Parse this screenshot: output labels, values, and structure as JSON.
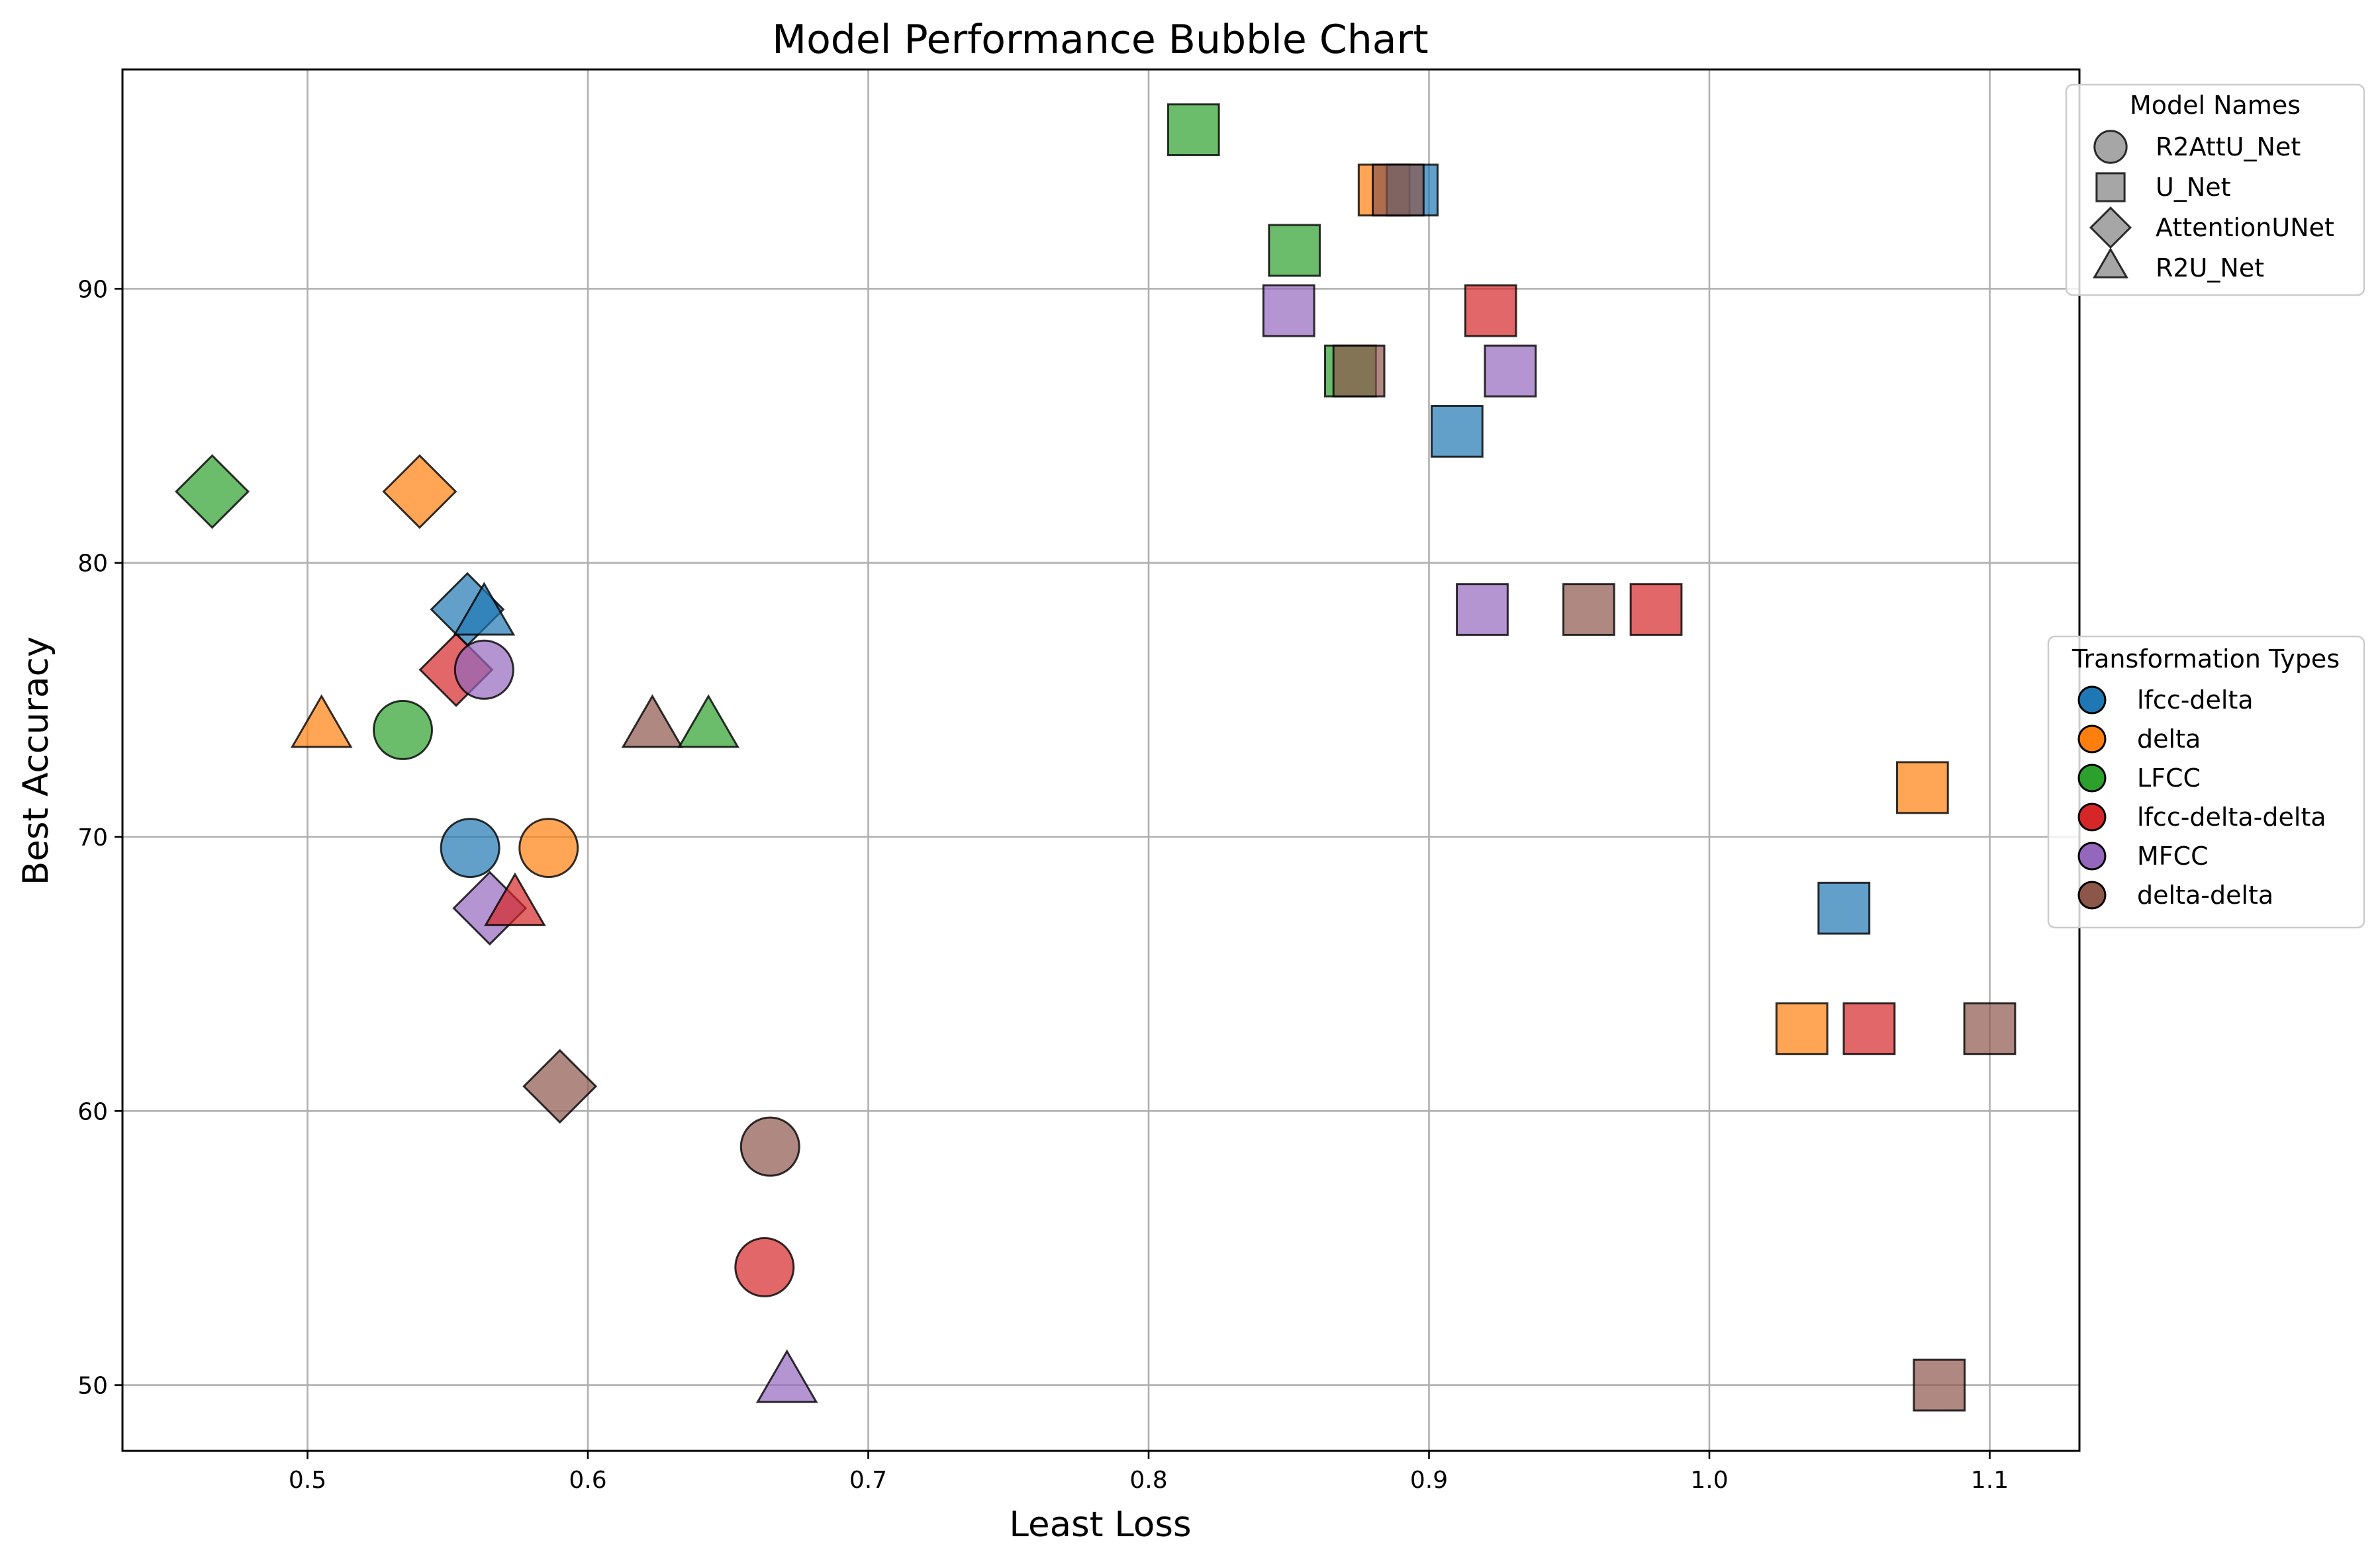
{
  "chart_data": {
    "type": "scatter",
    "title": "Model Performance Bubble Chart",
    "xlabel": "Least Loss",
    "ylabel": "Best Accuracy",
    "xlim": [
      0.434,
      1.132
    ],
    "ylim": [
      47.6,
      98.0
    ],
    "xticks": [
      0.5,
      0.6,
      0.7,
      0.8,
      0.9,
      1.0,
      1.1
    ],
    "xtick_labels": [
      "0.5",
      "0.6",
      "0.7",
      "0.8",
      "0.9",
      "1.0",
      "1.1"
    ],
    "yticks": [
      50,
      60,
      70,
      80,
      90
    ],
    "ytick_labels": [
      "50",
      "60",
      "70",
      "80",
      "90"
    ],
    "grid": true,
    "legend_models": {
      "title": "Model Names",
      "placement": "top-right outside",
      "items": [
        {
          "label": "R2AttU_Net",
          "shape": "circle"
        },
        {
          "label": "U_Net",
          "shape": "square"
        },
        {
          "label": "AttentionUNet",
          "shape": "diamond"
        },
        {
          "label": "R2U_Net",
          "shape": "triangle"
        }
      ]
    },
    "legend_transforms": {
      "title": "Transformation Types",
      "placement": "center-right outside",
      "items": [
        {
          "label": "lfcc-delta",
          "color": "#1f77b4"
        },
        {
          "label": "delta",
          "color": "#ff7f0e"
        },
        {
          "label": "LFCC",
          "color": "#2ca02c"
        },
        {
          "label": "lfcc-delta-delta",
          "color": "#d62728"
        },
        {
          "label": "MFCC",
          "color": "#9467bd"
        },
        {
          "label": "delta-delta",
          "color": "#8c564b"
        }
      ]
    },
    "points": [
      {
        "model": "U_Net",
        "transform": "LFCC",
        "x": 0.816,
        "y": 95.8
      },
      {
        "model": "U_Net",
        "transform": "delta",
        "x": 0.884,
        "y": 93.6
      },
      {
        "model": "U_Net",
        "transform": "lfcc-delta",
        "x": 0.894,
        "y": 93.6
      },
      {
        "model": "U_Net",
        "transform": "delta-delta",
        "x": 0.889,
        "y": 93.6
      },
      {
        "model": "U_Net",
        "transform": "LFCC",
        "x": 0.852,
        "y": 91.4
      },
      {
        "model": "U_Net",
        "transform": "MFCC",
        "x": 0.85,
        "y": 89.2
      },
      {
        "model": "U_Net",
        "transform": "lfcc-delta-delta",
        "x": 0.922,
        "y": 89.2
      },
      {
        "model": "U_Net",
        "transform": "LFCC",
        "x": 0.872,
        "y": 87.0
      },
      {
        "model": "U_Net",
        "transform": "delta-delta",
        "x": 0.875,
        "y": 87.0
      },
      {
        "model": "U_Net",
        "transform": "MFCC",
        "x": 0.929,
        "y": 87.0
      },
      {
        "model": "U_Net",
        "transform": "lfcc-delta",
        "x": 0.91,
        "y": 84.8
      },
      {
        "model": "U_Net",
        "transform": "MFCC",
        "x": 0.919,
        "y": 78.3
      },
      {
        "model": "U_Net",
        "transform": "delta-delta",
        "x": 0.957,
        "y": 78.3
      },
      {
        "model": "U_Net",
        "transform": "lfcc-delta-delta",
        "x": 0.981,
        "y": 78.3
      },
      {
        "model": "U_Net",
        "transform": "delta",
        "x": 1.076,
        "y": 71.8
      },
      {
        "model": "U_Net",
        "transform": "lfcc-delta",
        "x": 1.048,
        "y": 67.4
      },
      {
        "model": "U_Net",
        "transform": "delta",
        "x": 1.033,
        "y": 63.0
      },
      {
        "model": "U_Net",
        "transform": "lfcc-delta-delta",
        "x": 1.057,
        "y": 63.0
      },
      {
        "model": "U_Net",
        "transform": "delta-delta",
        "x": 1.1,
        "y": 63.0
      },
      {
        "model": "U_Net",
        "transform": "delta-delta",
        "x": 1.082,
        "y": 50.0
      },
      {
        "model": "AttentionUNet",
        "transform": "LFCC",
        "x": 0.466,
        "y": 82.6
      },
      {
        "model": "AttentionUNet",
        "transform": "delta",
        "x": 0.54,
        "y": 82.6
      },
      {
        "model": "AttentionUNet",
        "transform": "lfcc-delta",
        "x": 0.557,
        "y": 78.3
      },
      {
        "model": "AttentionUNet",
        "transform": "lfcc-delta-delta",
        "x": 0.553,
        "y": 76.1
      },
      {
        "model": "AttentionUNet",
        "transform": "MFCC",
        "x": 0.565,
        "y": 67.4
      },
      {
        "model": "AttentionUNet",
        "transform": "delta-delta",
        "x": 0.59,
        "y": 60.9
      },
      {
        "model": "R2U_Net",
        "transform": "lfcc-delta",
        "x": 0.563,
        "y": 78.0
      },
      {
        "model": "R2U_Net",
        "transform": "delta",
        "x": 0.505,
        "y": 73.9
      },
      {
        "model": "R2U_Net",
        "transform": "delta-delta",
        "x": 0.623,
        "y": 73.9
      },
      {
        "model": "R2U_Net",
        "transform": "LFCC",
        "x": 0.643,
        "y": 73.9
      },
      {
        "model": "R2U_Net",
        "transform": "lfcc-delta-delta",
        "x": 0.574,
        "y": 67.4
      },
      {
        "model": "R2U_Net",
        "transform": "MFCC",
        "x": 0.671,
        "y": 50.0
      },
      {
        "model": "R2AttU_Net",
        "transform": "MFCC",
        "x": 0.563,
        "y": 76.1
      },
      {
        "model": "R2AttU_Net",
        "transform": "LFCC",
        "x": 0.534,
        "y": 73.9
      },
      {
        "model": "R2AttU_Net",
        "transform": "lfcc-delta",
        "x": 0.558,
        "y": 69.6
      },
      {
        "model": "R2AttU_Net",
        "transform": "delta",
        "x": 0.586,
        "y": 69.6
      },
      {
        "model": "R2AttU_Net",
        "transform": "delta-delta",
        "x": 0.665,
        "y": 58.7
      },
      {
        "model": "R2AttU_Net",
        "transform": "lfcc-delta-delta",
        "x": 0.663,
        "y": 54.3
      }
    ]
  }
}
